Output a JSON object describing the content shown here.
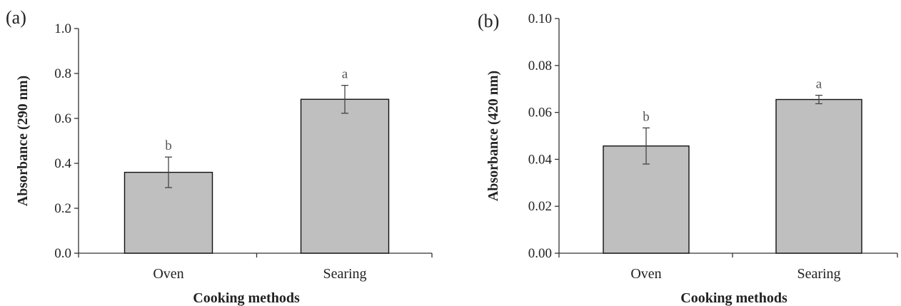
{
  "chart_data": [
    {
      "type": "bar",
      "panel_label": "(a)",
      "categories": [
        "Oven",
        "Searing"
      ],
      "values": [
        0.36,
        0.685
      ],
      "errors": [
        0.068,
        0.062
      ],
      "significance": [
        "b",
        "a"
      ],
      "xlabel": "Cooking methods",
      "ylabel": "Absorbance  (290 nm)",
      "ylim": [
        0,
        1.0
      ],
      "yticks": [
        "0.0",
        "0.2",
        "0.4",
        "0.6",
        "0.8",
        "1.0"
      ],
      "bar_color": "#bfbfbf",
      "grid": false
    },
    {
      "type": "bar",
      "panel_label": "(b)",
      "categories": [
        "Oven",
        "Searing"
      ],
      "values": [
        0.0457,
        0.0655
      ],
      "errors": [
        0.0077,
        0.0018
      ],
      "significance": [
        "b",
        "a"
      ],
      "xlabel": "Cooking methods",
      "ylabel": "Absorbance  (420 nm)",
      "ylim": [
        0,
        0.1
      ],
      "yticks": [
        "0.00",
        "0.02",
        "0.04",
        "0.06",
        "0.08",
        "0.10"
      ],
      "bar_color": "#bfbfbf",
      "grid": false
    }
  ]
}
